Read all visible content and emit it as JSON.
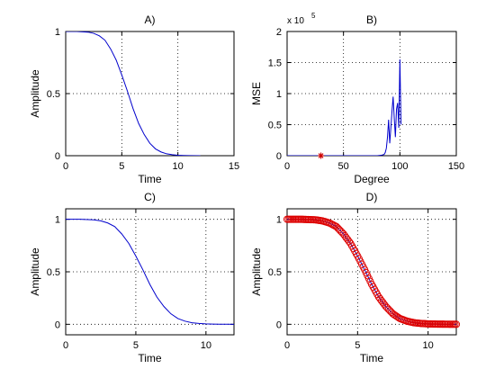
{
  "chart_data": [
    {
      "type": "line",
      "title": "A)",
      "xlabel": "Time",
      "ylabel": "Amplitude",
      "xlim": [
        0,
        15
      ],
      "ylim": [
        0,
        1
      ],
      "xticks": [
        "0",
        "5",
        "10",
        "15"
      ],
      "yticks": [
        "0",
        "0.5",
        "1"
      ],
      "grid": true,
      "series": [
        {
          "color": "#0000cc",
          "x": [
            0,
            1,
            2,
            2.5,
            3,
            3.5,
            4,
            4.5,
            5,
            5.5,
            6,
            6.5,
            7,
            7.5,
            8,
            8.5,
            9,
            9.5,
            10,
            10.5,
            11,
            12
          ],
          "y": [
            1.0,
            1.0,
            0.995,
            0.985,
            0.965,
            0.93,
            0.86,
            0.77,
            0.65,
            0.52,
            0.38,
            0.26,
            0.17,
            0.1,
            0.055,
            0.03,
            0.015,
            0.008,
            0.004,
            0.002,
            0.001,
            0.0
          ]
        }
      ]
    },
    {
      "type": "line",
      "title": "B)",
      "xlabel": "Degree",
      "ylabel": "MSE",
      "multiplier": "x 10",
      "multiplier_exp": "5",
      "xlim": [
        0,
        150
      ],
      "ylim": [
        0,
        2
      ],
      "xticks": [
        "0",
        "50",
        "100",
        "150"
      ],
      "yticks": [
        "0",
        "0.5",
        "1",
        "1.5",
        "2"
      ],
      "grid": true,
      "series": [
        {
          "color": "#0000cc",
          "x": [
            0,
            20,
            40,
            60,
            80,
            84,
            86,
            87,
            88,
            89,
            90,
            91,
            92,
            93,
            94,
            95,
            96,
            97,
            98,
            99,
            100,
            101
          ],
          "y": [
            0.0,
            0.0,
            0.0,
            0.0,
            0.0,
            0.01,
            0.02,
            0.05,
            0.12,
            0.3,
            0.58,
            0.2,
            0.45,
            0.72,
            0.95,
            0.6,
            0.3,
            0.75,
            0.85,
            0.45,
            1.55,
            0.5
          ]
        }
      ],
      "marker": {
        "x": 30,
        "y": 0.0,
        "symbol": "*",
        "color": "#cc0000"
      }
    },
    {
      "type": "line",
      "title": "C)",
      "xlabel": "Time",
      "ylabel": "Amplitude",
      "xlim": [
        0,
        12
      ],
      "ylim": [
        -0.1,
        1.1
      ],
      "xticks": [
        "0",
        "5",
        "10"
      ],
      "yticks": [
        "0",
        "0.5",
        "1"
      ],
      "grid": true,
      "series": [
        {
          "color": "#0000cc",
          "x": [
            0,
            1,
            2,
            2.5,
            3,
            3.5,
            4,
            4.5,
            5,
            5.5,
            6,
            6.5,
            7,
            7.5,
            8,
            8.5,
            9,
            9.5,
            10,
            10.5,
            11,
            12
          ],
          "y": [
            1.0,
            1.0,
            0.995,
            0.985,
            0.965,
            0.93,
            0.86,
            0.77,
            0.65,
            0.52,
            0.38,
            0.26,
            0.17,
            0.1,
            0.055,
            0.03,
            0.015,
            0.008,
            0.004,
            0.002,
            0.001,
            0.0
          ]
        }
      ]
    },
    {
      "type": "scatter",
      "title": "D)",
      "xlabel": "Time",
      "ylabel": "Amplitude",
      "xlim": [
        0,
        12
      ],
      "ylim": [
        -0.1,
        1.1
      ],
      "xticks": [
        "0",
        "5",
        "10"
      ],
      "yticks": [
        "0",
        "0.5",
        "1"
      ],
      "grid": true,
      "series": [
        {
          "color": "#0000cc",
          "x": [
            0,
            1,
            2,
            2.5,
            3,
            3.5,
            4,
            4.5,
            5,
            5.5,
            6,
            6.5,
            7,
            7.5,
            8,
            8.5,
            9,
            9.5,
            10,
            10.5,
            11,
            12
          ],
          "y": [
            1.0,
            1.0,
            0.995,
            0.985,
            0.965,
            0.93,
            0.86,
            0.77,
            0.65,
            0.52,
            0.38,
            0.26,
            0.17,
            0.1,
            0.055,
            0.03,
            0.015,
            0.008,
            0.004,
            0.002,
            0.001,
            0.0
          ]
        }
      ],
      "markers": {
        "symbol": "o",
        "color": "#dd0000",
        "x_start": 0,
        "x_end": 12,
        "x_step": 0.1
      }
    }
  ]
}
